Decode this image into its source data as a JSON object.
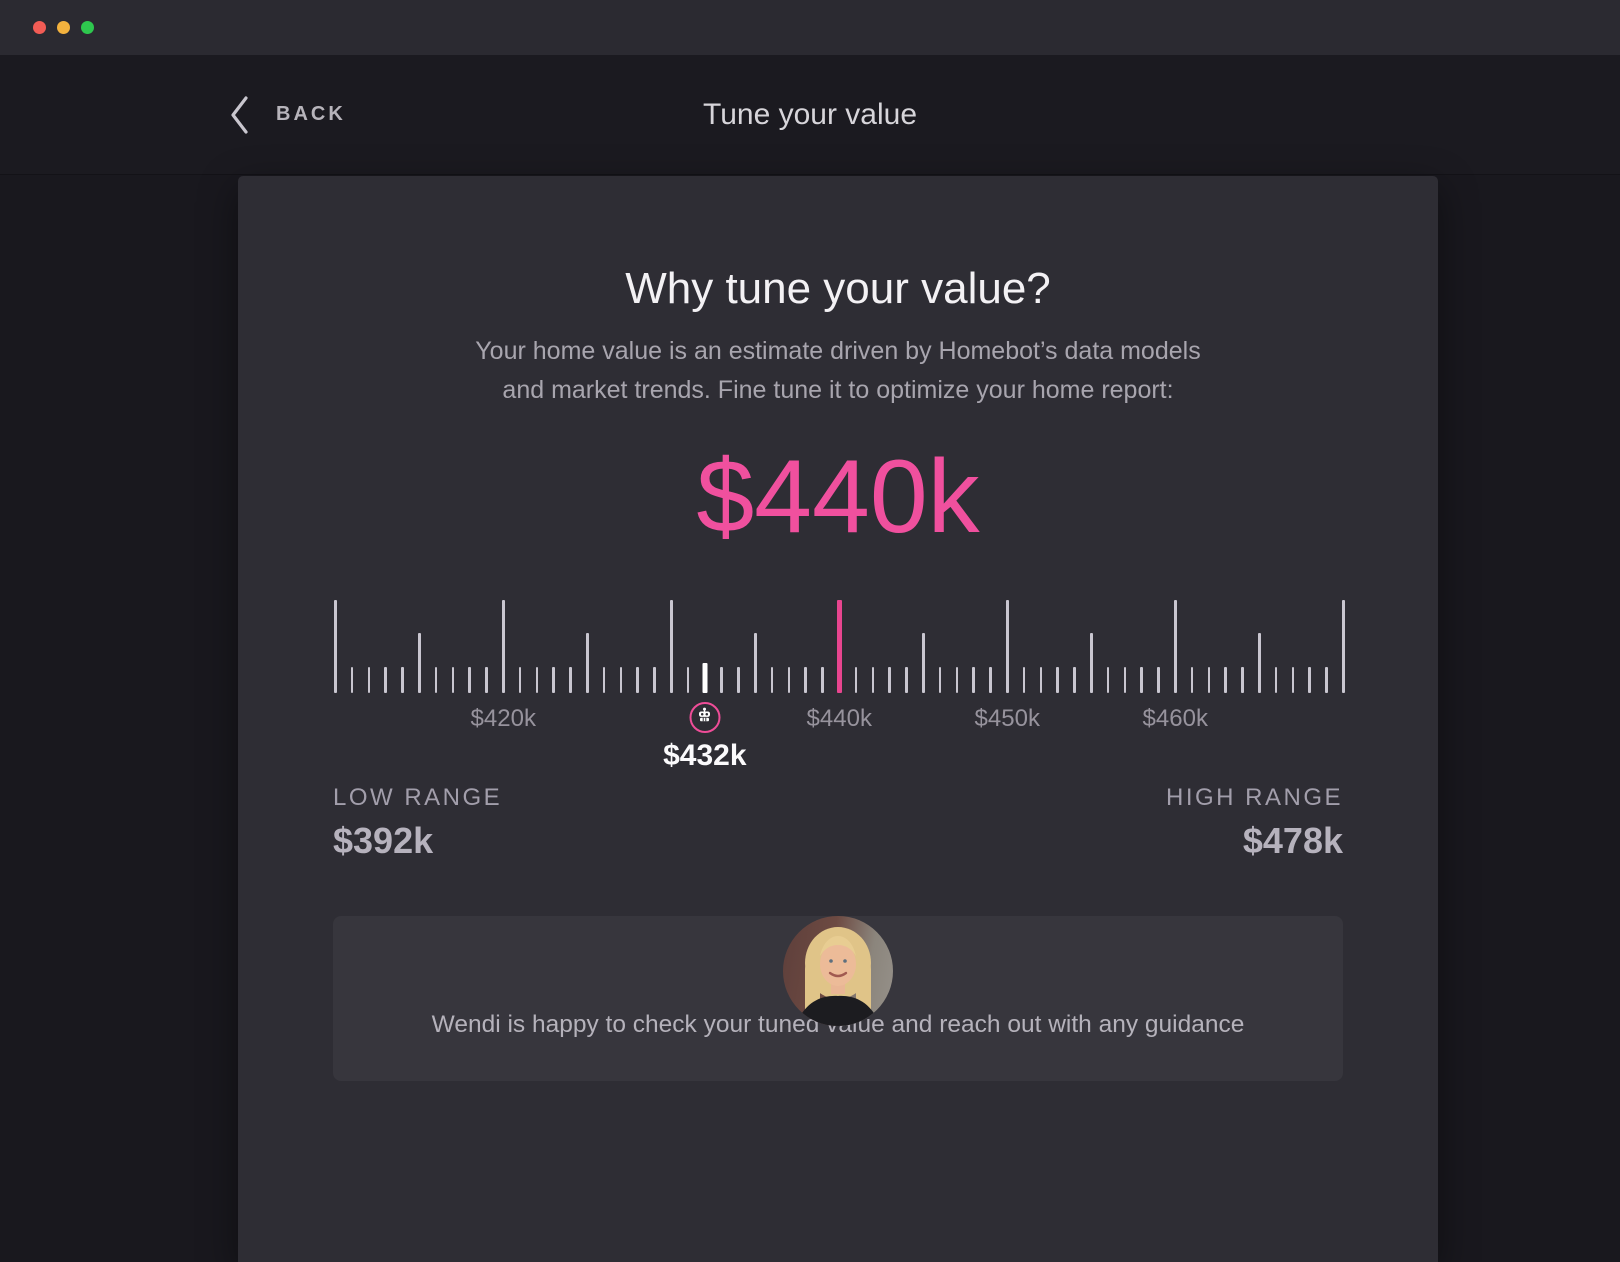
{
  "titlebar": {
    "traffic_lights": [
      "#f25c55",
      "#f3b23e",
      "#2ec74e"
    ]
  },
  "header": {
    "back_label": "BACK",
    "title": "Tune your value"
  },
  "intro": {
    "heading": "Why tune your value?",
    "description_lines": [
      "Your home value is an estimate driven by Homebot’s data models",
      "and market trends. Fine tune it to optimize your home report:"
    ]
  },
  "value_display": {
    "current_value": "$440k"
  },
  "ruler": {
    "min_value_k": 410,
    "max_value_k": 470,
    "step_k": 1,
    "estimate_value_k": 440,
    "tuned_value_k": 432,
    "tuned_label": "$432k",
    "tick_labels": [
      {
        "value_k": 420,
        "label": "$420k"
      },
      {
        "value_k": 440,
        "label": "$440k"
      },
      {
        "value_k": 450,
        "label": "$450k"
      },
      {
        "value_k": 460,
        "label": "$460k"
      }
    ]
  },
  "range": {
    "low_label": "LOW RANGE",
    "low_value": "$392k",
    "high_label": "HIGH RANGE",
    "high_value": "$478k"
  },
  "advisor": {
    "message": "Wendi is happy to check your tuned value and reach out with any guidance"
  },
  "colors": {
    "accent_pink": "#f0509e",
    "ruler_pink": "#e8458f",
    "marker_ring_pink": "#ef4d98",
    "card_bg": "#2e2d34",
    "message_box_bg": "#37363d",
    "page_bg": "#19181e"
  }
}
